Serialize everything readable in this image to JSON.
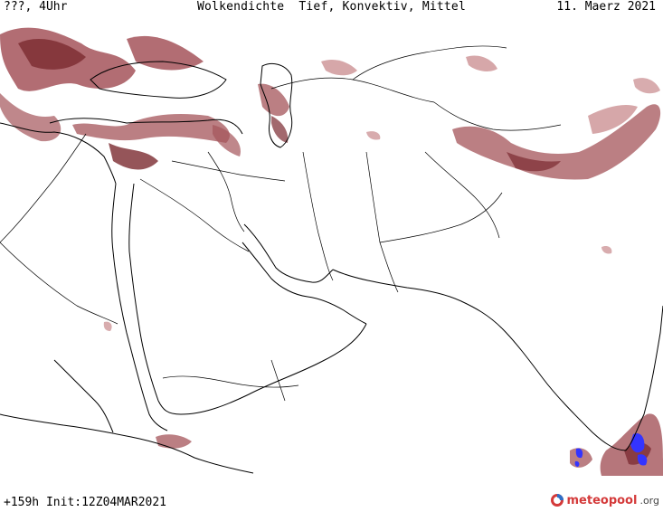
{
  "header": {
    "left": "???, 4Uhr",
    "center": "Wolkendichte  Tief, Konvektiv, Mittel",
    "right": "11. Maerz 2021"
  },
  "footer": {
    "run_info": "+159h Init:12Z04MAR2021",
    "logo_text": "meteopool",
    "logo_suffix": ".org"
  },
  "colors": {
    "cloud_dense": "#7a2a30",
    "cloud_medium": "#a4545a",
    "cloud_light": "#c8898c",
    "convective": "#3434ff",
    "coastline": "#000000",
    "border": "#000000"
  },
  "map": {
    "region": "Middle East / Arabian Peninsula / South Asia",
    "icons": [
      "logo-icon"
    ]
  }
}
